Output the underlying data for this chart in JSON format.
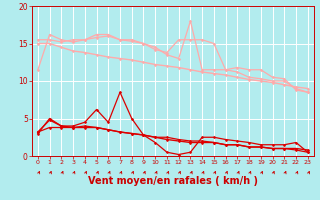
{
  "xlabel": "Vent moyen/en rafales ( km/h )",
  "background_color": "#b2ecee",
  "grid_color": "#ffffff",
  "xlabel_color": "#cc0000",
  "xlabel_fontsize": 7,
  "x_values": [
    0,
    1,
    2,
    3,
    4,
    5,
    6,
    7,
    8,
    9,
    10,
    11,
    12,
    13,
    14,
    15,
    16,
    17,
    18,
    19,
    20,
    21,
    22,
    23
  ],
  "series": [
    {
      "y": [
        11.5,
        16.2,
        15.5,
        15.2,
        15.5,
        16.2,
        16.2,
        15.5,
        15.5,
        15.0,
        14.5,
        13.5,
        13.0,
        18.0,
        11.5,
        11.5,
        11.5,
        11.8,
        11.5,
        11.5,
        10.5,
        10.3,
        8.8,
        8.5
      ],
      "color": "#ffaaaa",
      "lw": 0.9,
      "marker": "D",
      "ms": 1.5
    },
    {
      "y": [
        15.5,
        15.5,
        15.2,
        15.5,
        15.5,
        15.8,
        16.0,
        15.5,
        15.3,
        15.0,
        14.2,
        13.8,
        15.5,
        15.5,
        15.5,
        15.0,
        11.5,
        11.2,
        10.5,
        10.3,
        10.0,
        10.0,
        9.0,
        8.5
      ],
      "color": "#ffaaaa",
      "lw": 0.9,
      "marker": "D",
      "ms": 1.5
    },
    {
      "y": [
        15.0,
        15.0,
        14.5,
        14.0,
        13.8,
        13.5,
        13.2,
        13.0,
        12.8,
        12.5,
        12.2,
        12.0,
        11.8,
        11.5,
        11.2,
        11.0,
        10.8,
        10.5,
        10.2,
        10.0,
        9.8,
        9.5,
        9.2,
        9.0
      ],
      "color": "#ffaaaa",
      "lw": 1.0,
      "marker": "D",
      "ms": 1.5
    },
    {
      "y": [
        3.0,
        5.0,
        4.0,
        4.0,
        4.5,
        6.2,
        4.5,
        8.5,
        5.0,
        2.8,
        1.8,
        0.5,
        0.2,
        0.5,
        2.5,
        2.5,
        2.2,
        2.0,
        1.8,
        1.5,
        1.5,
        1.5,
        1.8,
        0.5
      ],
      "color": "#dd0000",
      "lw": 0.9,
      "marker": "D",
      "ms": 1.5
    },
    {
      "y": [
        3.2,
        4.8,
        4.0,
        3.8,
        3.8,
        3.8,
        3.5,
        3.2,
        3.0,
        2.8,
        2.5,
        2.2,
        2.0,
        1.8,
        1.8,
        1.8,
        1.5,
        1.5,
        1.2,
        1.2,
        1.0,
        1.0,
        1.0,
        0.8
      ],
      "color": "#dd0000",
      "lw": 1.0,
      "marker": "D",
      "ms": 1.5
    },
    {
      "y": [
        3.2,
        3.8,
        3.8,
        3.8,
        4.0,
        3.8,
        3.5,
        3.2,
        3.0,
        2.8,
        2.5,
        2.5,
        2.2,
        2.0,
        2.0,
        1.8,
        1.5,
        1.5,
        1.2,
        1.2,
        1.0,
        1.0,
        0.8,
        0.5
      ],
      "color": "#dd0000",
      "lw": 0.9,
      "marker": "D",
      "ms": 1.5
    }
  ],
  "yticks": [
    0,
    5,
    10,
    15,
    20
  ],
  "xticks": [
    0,
    1,
    2,
    3,
    4,
    5,
    6,
    7,
    8,
    9,
    10,
    11,
    12,
    13,
    14,
    15,
    16,
    17,
    18,
    19,
    20,
    21,
    22,
    23
  ],
  "ylim_top": 20,
  "ylim_bottom": 0
}
